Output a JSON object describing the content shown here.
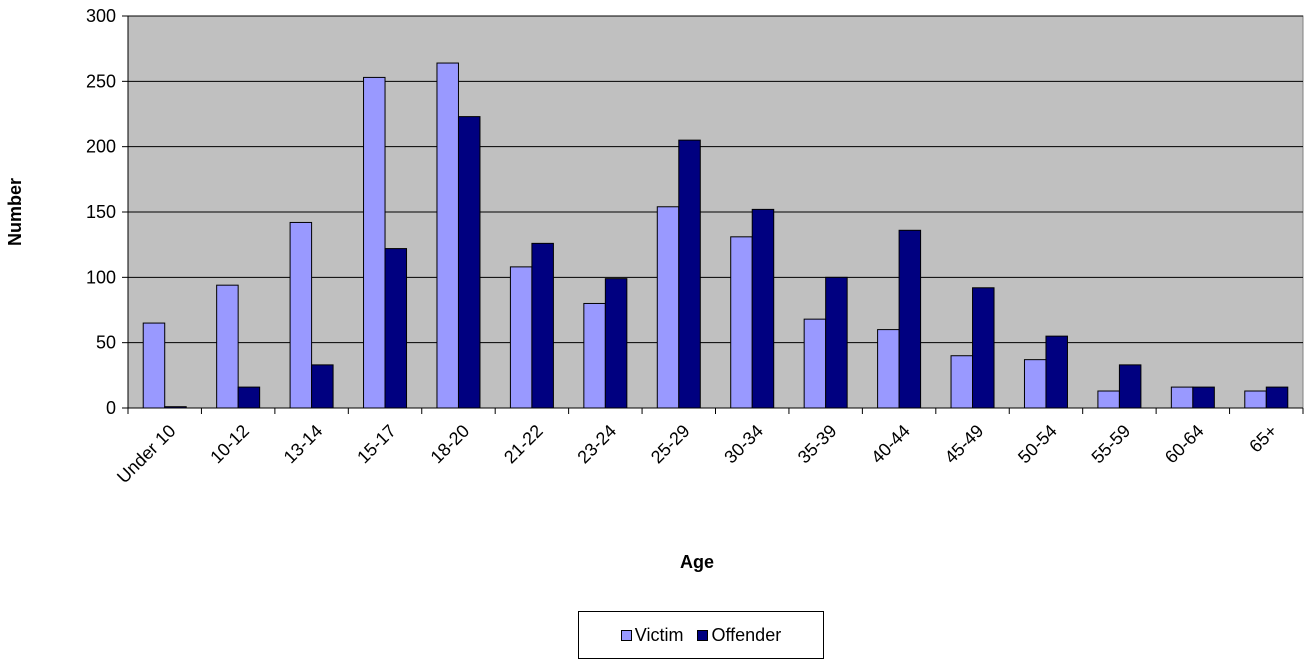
{
  "chart_data": {
    "type": "bar",
    "xlabel": "Age",
    "ylabel": "Number",
    "ylim": [
      0,
      300
    ],
    "yticks": [
      0,
      50,
      100,
      150,
      200,
      250,
      300
    ],
    "grid": true,
    "legend_placement": "bottom",
    "categories": [
      "Under 10",
      "10-12",
      "13-14",
      "15-17",
      "18-20",
      "21-22",
      "23-24",
      "25-29",
      "30-34",
      "35-39",
      "40-44",
      "45-49",
      "50-54",
      "55-59",
      "60-64",
      "65+"
    ],
    "series": [
      {
        "name": "Victim",
        "color": "#9999ff",
        "values": [
          65,
          94,
          142,
          253,
          264,
          108,
          80,
          154,
          131,
          68,
          60,
          40,
          37,
          13,
          16,
          13
        ]
      },
      {
        "name": "Offender",
        "color": "#000080",
        "values": [
          1,
          16,
          33,
          122,
          223,
          126,
          99,
          205,
          152,
          100,
          136,
          92,
          55,
          33,
          16,
          16
        ]
      }
    ],
    "plot_background": "#c0c0c0"
  }
}
